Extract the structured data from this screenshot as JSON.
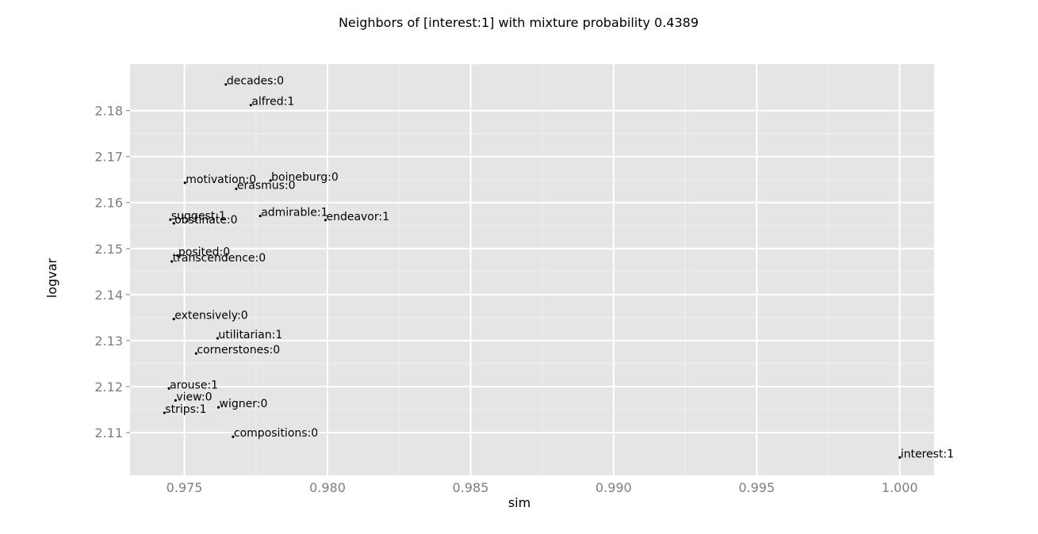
{
  "chart_data": {
    "type": "scatter",
    "title": "Neighbors of [interest:1] with mixture probability 0.4389",
    "xlabel": "sim",
    "ylabel": "logvar",
    "xlim": [
      0.9731,
      1.0012
    ],
    "ylim": [
      2.1007,
      2.1901
    ],
    "xticks": [
      "0.975",
      "0.980",
      "0.985",
      "0.990",
      "0.995",
      "1.000"
    ],
    "yticks": [
      "2.11",
      "2.12",
      "2.13",
      "2.14",
      "2.15",
      "2.16",
      "2.17",
      "2.18"
    ],
    "grid": true,
    "colors": {
      "panel_background": "#e5e5e5",
      "grid_major": "#ffffff",
      "grid_minor": "#f0f0f0",
      "point": "#000000",
      "tick_label": "#7f7f7f"
    },
    "points": [
      {
        "label": "decades:0",
        "x": 0.97645,
        "y": 2.1857
      },
      {
        "label": "alfred:1",
        "x": 0.97732,
        "y": 2.1812
      },
      {
        "label": "motivation:0",
        "x": 0.97502,
        "y": 2.1643
      },
      {
        "label": "boineburg:0",
        "x": 0.97801,
        "y": 2.1648
      },
      {
        "label": "erasmus:0",
        "x": 0.97681,
        "y": 2.163
      },
      {
        "label": "admirable:1",
        "x": 0.97765,
        "y": 2.1571
      },
      {
        "label": "endeavor:1",
        "x": 0.97993,
        "y": 2.1562
      },
      {
        "label": "suggest:1",
        "x": 0.97451,
        "y": 2.1563
      },
      {
        "label": "obstinate:0",
        "x": 0.97463,
        "y": 2.1555
      },
      {
        "label": "posited:0",
        "x": 0.97476,
        "y": 2.1485
      },
      {
        "label": "transcendence:0",
        "x": 0.97456,
        "y": 2.1472
      },
      {
        "label": "extensively:0",
        "x": 0.97463,
        "y": 2.1347
      },
      {
        "label": "utilitarian:1",
        "x": 0.97616,
        "y": 2.1305
      },
      {
        "label": "cornerstones:0",
        "x": 0.97541,
        "y": 2.1272
      },
      {
        "label": "arouse:1",
        "x": 0.97446,
        "y": 2.1196
      },
      {
        "label": "view:0",
        "x": 0.97469,
        "y": 2.117
      },
      {
        "label": "strips:1",
        "x": 0.9743,
        "y": 2.1143
      },
      {
        "label": "wigner:0",
        "x": 0.97619,
        "y": 2.1155
      },
      {
        "label": "compositions:0",
        "x": 0.9767,
        "y": 2.1091
      },
      {
        "label": "interest:1",
        "x": 1.0,
        "y": 2.1046
      }
    ]
  }
}
